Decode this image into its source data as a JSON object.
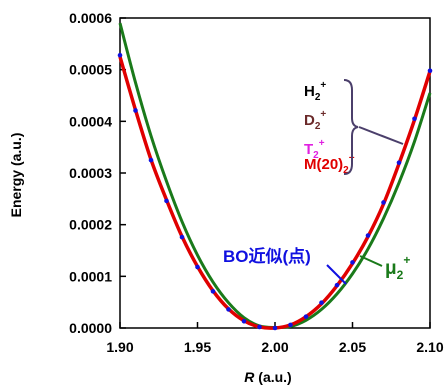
{
  "chart_data": {
    "type": "line",
    "xlabel_italic": "R",
    "xlabel_rest": " (a.u.)",
    "ylabel": "Energy (a.u.)",
    "xlim": [
      1.9,
      2.1
    ],
    "ylim": [
      0.0,
      0.0006
    ],
    "x_ticks": [
      "1.90",
      "1.95",
      "2.00",
      "2.05",
      "2.10"
    ],
    "y_ticks": [
      "0.0000",
      "0.0001",
      "0.0002",
      "0.0003",
      "0.0004",
      "0.0005",
      "0.0006"
    ],
    "grid": false,
    "legend_group": {
      "entries": [
        {
          "base": "H",
          "sub": "2",
          "sup": "+",
          "color": "#000000"
        },
        {
          "base": "D",
          "sub": "2",
          "sup": "+",
          "color": "#6b2a2a"
        },
        {
          "base": "T",
          "sub": "2",
          "sup": "+",
          "color": "#e020e0"
        },
        {
          "base": "M(20)",
          "sub": "2",
          "sup": "+",
          "color": "#e00000"
        }
      ]
    },
    "annotation_bo": {
      "text": "BO近似(点)",
      "color": "#1010e0"
    },
    "annotation_mu": {
      "base": "μ",
      "sub": "2",
      "sup": "+",
      "color": "#1a7a1a"
    },
    "series": [
      {
        "label": "red curve (H2+, D2+, T2+, M(20)2+)",
        "color": "#e00000",
        "x": [
          1.9,
          1.91,
          1.92,
          1.93,
          1.94,
          1.95,
          1.96,
          1.97,
          1.98,
          1.99,
          2.0,
          2.01,
          2.02,
          2.03,
          2.04,
          2.05,
          2.06,
          2.07,
          2.08,
          2.09,
          2.1
        ],
        "y": [
          0.000525,
          0.000422,
          0.000326,
          0.000248,
          0.000177,
          0.000119,
          7.2e-05,
          3.7e-05,
          1.4e-05,
          2e-06,
          0.0,
          6e-06,
          2.2e-05,
          4.7e-05,
          8.2e-05,
          0.000125,
          0.000177,
          0.00024,
          0.000318,
          0.000403,
          0.000497
        ]
      },
      {
        "label": "green curve",
        "color": "#1a7a1a",
        "x": [
          1.9,
          1.91,
          1.92,
          1.93,
          1.94,
          1.95,
          1.96,
          1.97,
          1.98,
          1.99,
          2.0,
          2.01,
          2.02,
          2.03,
          2.04,
          2.05,
          2.06,
          2.07,
          2.08,
          2.09,
          2.1
        ],
        "y": [
          0.00059,
          0.000475,
          0.000372,
          0.000284,
          0.000206,
          0.000141,
          8.9e-05,
          4.9e-05,
          2e-05,
          4e-06,
          1e-06,
          3e-06,
          1.5e-05,
          3.6e-05,
          6.6e-05,
          0.000105,
          0.000153,
          0.000212,
          0.000281,
          0.000361,
          0.000455
        ]
      }
    ],
    "points": {
      "label": "BO近似(点)",
      "color": "#1010e0",
      "x": [
        1.9,
        1.91,
        1.92,
        1.93,
        1.94,
        1.95,
        1.96,
        1.97,
        1.98,
        1.99,
        2.0,
        2.01,
        2.02,
        2.03,
        2.04,
        2.05,
        2.06,
        2.07,
        2.08,
        2.09,
        2.1
      ],
      "y": [
        0.000528,
        0.000421,
        0.000325,
        0.000246,
        0.000176,
        0.000118,
        7.1e-05,
        3.6e-05,
        1.3e-05,
        2e-06,
        0.0,
        6e-06,
        2.2e-05,
        4.9e-05,
        8.3e-05,
        0.000127,
        0.000179,
        0.000243,
        0.00032,
        0.000405,
        0.000498
      ]
    }
  }
}
